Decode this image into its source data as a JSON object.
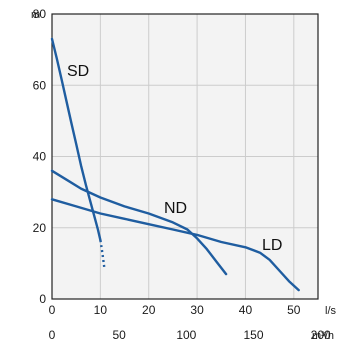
{
  "colors": {
    "curve": "#1f5da0",
    "grid": "#cccccc",
    "frame": "#222222",
    "background": "#f3f3f3"
  },
  "chart_data": {
    "type": "line",
    "grid": true,
    "ylabel": "m",
    "xlabel": "l/s",
    "xlabel_secondary": "m³/h",
    "xlim": [
      0,
      55
    ],
    "ylim": [
      0,
      80
    ],
    "x_ticks": [
      "0",
      "10",
      "20",
      "30",
      "40",
      "50"
    ],
    "x2_ticks": [
      "0",
      "50",
      "100",
      "150",
      "200"
    ],
    "y_ticks": [
      "0",
      "20",
      "40",
      "60",
      "80"
    ],
    "series": [
      {
        "name": "SD",
        "points": [
          [
            0,
            73
          ],
          [
            1,
            67.5
          ],
          [
            2,
            61.5
          ],
          [
            3,
            55.5
          ],
          [
            4,
            49.5
          ],
          [
            5,
            43.5
          ],
          [
            6,
            37.5
          ],
          [
            7,
            32
          ],
          [
            8,
            27
          ],
          [
            9,
            22
          ],
          [
            9.5,
            19.5
          ],
          [
            10,
            16.5
          ]
        ],
        "dashed_points": [
          [
            10,
            16.5
          ],
          [
            10.3,
            14
          ],
          [
            10.6,
            11
          ],
          [
            10.8,
            9
          ]
        ]
      },
      {
        "name": "ND",
        "points": [
          [
            0,
            36
          ],
          [
            3,
            33.5
          ],
          [
            6,
            31
          ],
          [
            10,
            28.5
          ],
          [
            15,
            26
          ],
          [
            20,
            24
          ],
          [
            25,
            21.5
          ],
          [
            28,
            19.5
          ],
          [
            30,
            17
          ],
          [
            32,
            14
          ],
          [
            34,
            10.5
          ],
          [
            36,
            7
          ]
        ]
      },
      {
        "name": "LD",
        "points": [
          [
            0,
            28
          ],
          [
            5,
            26
          ],
          [
            10,
            24
          ],
          [
            15,
            22.5
          ],
          [
            20,
            21
          ],
          [
            25,
            19.5
          ],
          [
            30,
            18
          ],
          [
            35,
            16
          ],
          [
            40,
            14.5
          ],
          [
            43,
            13
          ],
          [
            45,
            11
          ],
          [
            47,
            8
          ],
          [
            49,
            5
          ],
          [
            51,
            2.5
          ]
        ]
      }
    ]
  }
}
